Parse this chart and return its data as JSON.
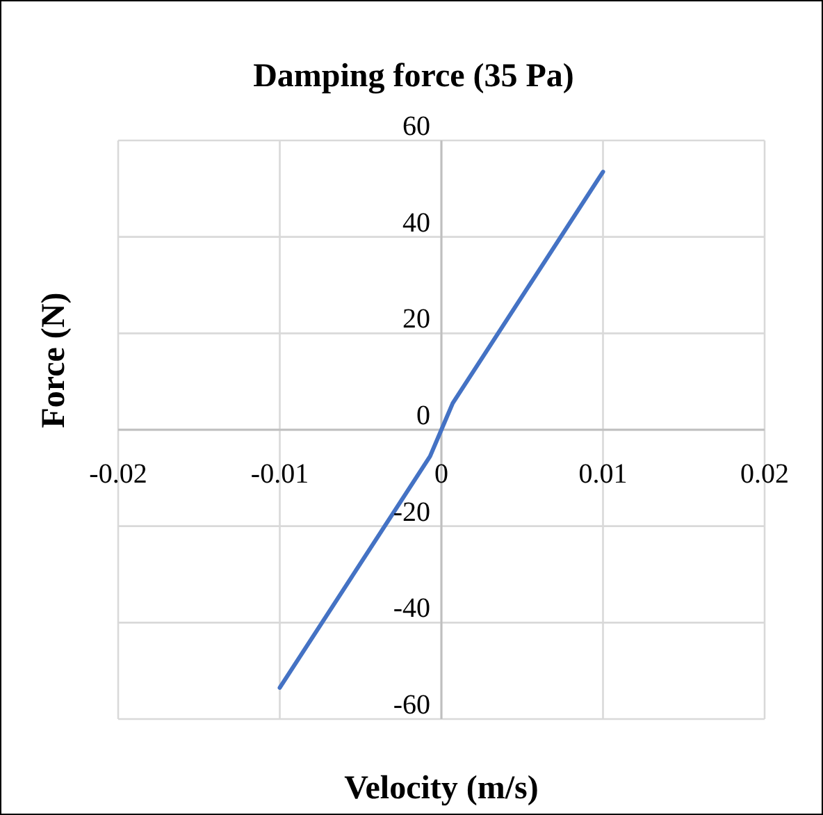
{
  "chart_data": {
    "type": "line",
    "title": "Damping force (35 Pa)",
    "xlabel": "Velocity (m/s)",
    "ylabel": "Force (N)",
    "xlim": [
      -0.02,
      0.02
    ],
    "xticks": [
      -0.02,
      -0.01,
      0,
      0.01,
      0.02
    ],
    "ylim": [
      -60,
      60
    ],
    "yticks": [
      -60,
      -40,
      -20,
      0,
      20,
      40,
      60
    ],
    "grid": true,
    "marker": "none",
    "line_style": "solid",
    "series": [
      {
        "color": "#4472c4",
        "x": [
          -0.01,
          -0.0007,
          0,
          0.0007,
          0.01
        ],
        "values": [
          -53.5,
          -5.5,
          0,
          5.5,
          53.5
        ]
      }
    ]
  }
}
